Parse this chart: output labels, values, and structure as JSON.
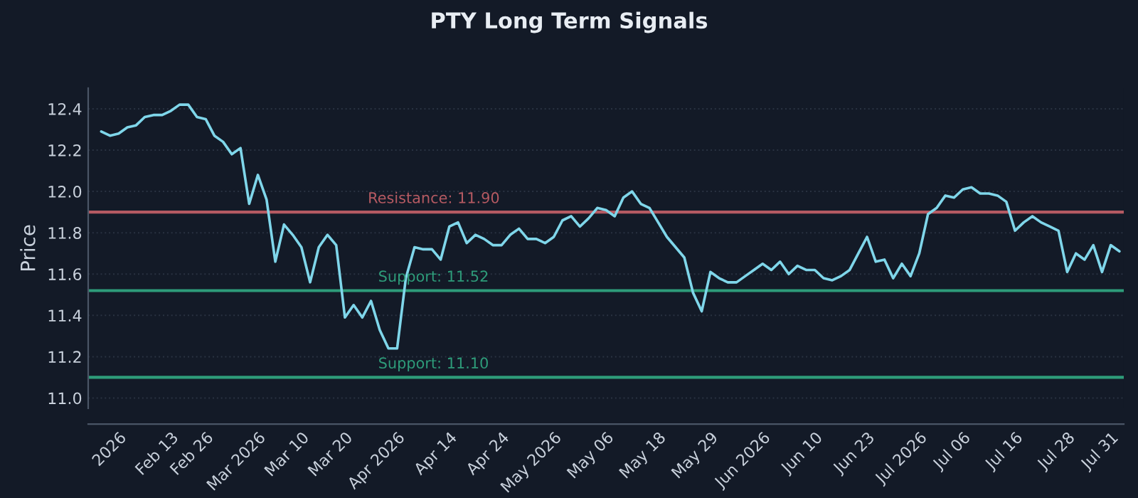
{
  "chart_data": {
    "type": "line",
    "title": "PTY Long Term Signals",
    "ylabel": "Price",
    "categories": [
      null,
      null,
      "2026",
      null,
      null,
      null,
      null,
      null,
      "Feb 13",
      null,
      null,
      null,
      "Feb 26",
      null,
      null,
      null,
      null,
      null,
      "Mar 2026",
      null,
      null,
      null,
      null,
      "Mar 10",
      null,
      null,
      null,
      null,
      "Mar 20",
      null,
      null,
      null,
      null,
      null,
      "Apr 2026",
      null,
      null,
      null,
      null,
      null,
      "Apr 14",
      null,
      null,
      null,
      null,
      null,
      "Apr 24",
      null,
      null,
      null,
      null,
      null,
      "May 2026",
      null,
      null,
      null,
      null,
      null,
      "May 06",
      null,
      null,
      null,
      null,
      null,
      "May 18",
      null,
      null,
      null,
      null,
      null,
      "May 29",
      null,
      null,
      null,
      null,
      null,
      "Jun 2026",
      null,
      null,
      null,
      null,
      null,
      "Jun 10",
      null,
      null,
      null,
      null,
      null,
      "Jun 23",
      null,
      null,
      null,
      null,
      null,
      "Jul 2026",
      null,
      null,
      null,
      null,
      "Jul 06",
      null,
      null,
      null,
      null,
      null,
      "Jul 16",
      null,
      null,
      null,
      null,
      null,
      "Jul 28",
      null,
      null,
      null,
      null,
      "Jul 31",
      null
    ],
    "series": [
      {
        "color": "#7fd6ea",
        "values": [
          12.29,
          12.27,
          12.28,
          12.31,
          12.32,
          12.36,
          12.37,
          12.37,
          12.39,
          12.42,
          12.42,
          12.36,
          12.35,
          12.27,
          12.24,
          12.18,
          12.21,
          11.94,
          12.08,
          11.96,
          11.66,
          11.84,
          11.79,
          11.73,
          11.56,
          11.73,
          11.79,
          11.74,
          11.39,
          11.45,
          11.39,
          11.47,
          11.33,
          11.24,
          11.24,
          11.58,
          11.73,
          11.72,
          11.72,
          11.67,
          11.83,
          11.85,
          11.75,
          11.79,
          11.77,
          11.74,
          11.74,
          11.79,
          11.82,
          11.77,
          11.77,
          11.75,
          11.78,
          11.86,
          11.88,
          11.83,
          11.87,
          11.92,
          11.91,
          11.88,
          11.97,
          12.0,
          11.94,
          11.92,
          11.85,
          11.78,
          11.73,
          11.68,
          11.51,
          11.42,
          11.61,
          11.58,
          11.56,
          11.56,
          11.59,
          11.62,
          11.65,
          11.62,
          11.66,
          11.6,
          11.64,
          11.62,
          11.62,
          11.58,
          11.57,
          11.59,
          11.62,
          11.7,
          11.78,
          11.66,
          11.67,
          11.58,
          11.65,
          11.59,
          11.7,
          11.89,
          11.92,
          11.98,
          11.97,
          12.01,
          12.02,
          11.99,
          11.99,
          11.98,
          11.95,
          11.81,
          11.85,
          11.88,
          11.85,
          11.83,
          11.81,
          11.61,
          11.7,
          11.67,
          11.74,
          11.61,
          11.74,
          11.71
        ]
      }
    ],
    "ylim": [
      10.95,
      12.5
    ],
    "yticks": [
      {
        "value": 11.0,
        "label": "11.0"
      },
      {
        "value": 11.2,
        "label": "11.2"
      },
      {
        "value": 11.4,
        "label": "11.4"
      },
      {
        "value": 11.6,
        "label": "11.6"
      },
      {
        "value": 11.8,
        "label": "11.8"
      },
      {
        "value": 12.0,
        "label": "12.0"
      },
      {
        "value": 12.2,
        "label": "12.2"
      },
      {
        "value": 12.4,
        "label": "12.4"
      }
    ],
    "grid": "y",
    "ref_lines": [
      {
        "axis": "y",
        "value": 11.9,
        "label": "Resistance: 11.90",
        "color": "#b55a62"
      },
      {
        "axis": "y",
        "value": 11.52,
        "label": "Support: 11.52",
        "color": "#2e9c7a"
      },
      {
        "axis": "y",
        "value": 11.1,
        "label": "Support: 11.10",
        "color": "#2e9c7a"
      }
    ]
  }
}
